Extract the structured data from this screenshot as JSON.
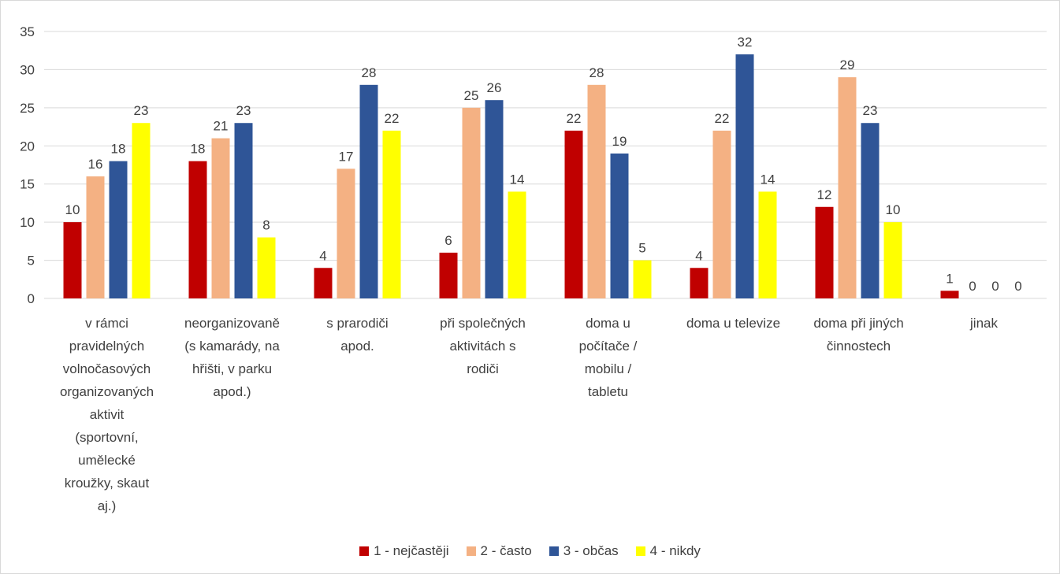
{
  "chart_data": {
    "type": "bar",
    "title": "",
    "xlabel": "",
    "ylabel": "",
    "ylim": [
      0,
      35
    ],
    "yticks": [
      0,
      5,
      10,
      15,
      20,
      25,
      30,
      35
    ],
    "grid": true,
    "legend_position": "bottom",
    "categories": [
      [
        "v rámci",
        "pravidelných",
        "volnočasových",
        "organizovaných",
        "aktivit",
        "(sportovní,",
        "umělecké",
        "kroužky, skaut",
        "aj.)"
      ],
      [
        "neorganizovaně",
        "(s kamarády, na",
        "hřišti, v parku",
        "apod.)"
      ],
      [
        "s prarodiči",
        "apod."
      ],
      [
        "při společných",
        "aktivitách s",
        "rodiči"
      ],
      [
        "doma u",
        "počítače /",
        "mobilu /",
        "tabletu"
      ],
      [
        "doma u televize"
      ],
      [
        "doma při jiných",
        "činnostech"
      ],
      [
        "jinak"
      ]
    ],
    "series": [
      {
        "name": "1 - nejčastěji",
        "color": "#c00000",
        "values": [
          10,
          18,
          4,
          6,
          22,
          4,
          12,
          1
        ]
      },
      {
        "name": "2 - často",
        "color": "#f4b183",
        "values": [
          16,
          21,
          17,
          25,
          28,
          22,
          29,
          0
        ]
      },
      {
        "name": "3 - občas",
        "color": "#2f5597",
        "values": [
          18,
          23,
          28,
          26,
          19,
          32,
          23,
          0
        ]
      },
      {
        "name": "4 - nikdy",
        "color": "#ffff00",
        "values": [
          23,
          8,
          22,
          14,
          5,
          14,
          10,
          0
        ]
      }
    ]
  }
}
